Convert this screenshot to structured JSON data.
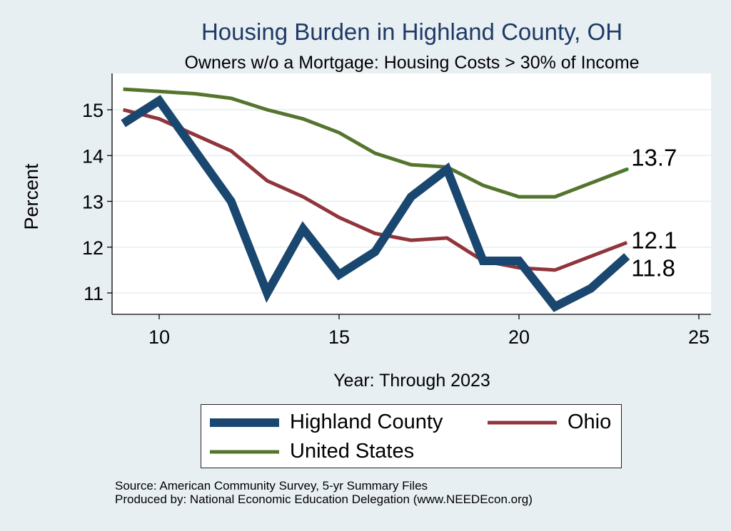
{
  "chart_data": {
    "type": "line",
    "title": "Housing Burden in Highland County, OH",
    "subtitle": "Owners w/o a Mortgage: Housing Costs > 30% of Income",
    "xlabel": "Year: Through 2023",
    "ylabel": "Percent",
    "xlim": [
      9,
      25
    ],
    "ylim": [
      10.55,
      15.6
    ],
    "x_ticks": [
      10,
      15,
      20,
      25
    ],
    "y_ticks": [
      11,
      12,
      13,
      14,
      15
    ],
    "grid": true,
    "legend_position": "bottom",
    "series": [
      {
        "name": "Highland County",
        "color": "#1a476f",
        "x": [
          9,
          10,
          11,
          12,
          13,
          14,
          15,
          16,
          17,
          18,
          19,
          20,
          21,
          22,
          23
        ],
        "values": [
          14.7,
          15.2,
          14.1,
          13.0,
          11.0,
          12.4,
          11.4,
          11.9,
          13.1,
          13.7,
          11.7,
          11.7,
          10.7,
          11.1,
          11.8
        ],
        "end_label": "11.8"
      },
      {
        "name": "Ohio",
        "color": "#90353b",
        "x": [
          9,
          10,
          11,
          12,
          13,
          14,
          15,
          16,
          17,
          18,
          19,
          20,
          21,
          22,
          23
        ],
        "values": [
          15.0,
          14.8,
          14.45,
          14.1,
          13.45,
          13.1,
          12.65,
          12.3,
          12.15,
          12.2,
          11.7,
          11.55,
          11.5,
          11.8,
          12.1
        ],
        "end_label": "12.1"
      },
      {
        "name": "United States",
        "color": "#55752f",
        "x": [
          9,
          10,
          11,
          12,
          13,
          14,
          15,
          16,
          17,
          18,
          19,
          20,
          21,
          22,
          23
        ],
        "values": [
          15.45,
          15.4,
          15.35,
          15.25,
          15.0,
          14.8,
          14.5,
          14.05,
          13.8,
          13.75,
          13.35,
          13.1,
          13.1,
          13.4,
          13.7
        ],
        "end_label": "13.7"
      }
    ]
  },
  "legend": {
    "highland": "Highland County",
    "ohio": "Ohio",
    "us": "United States"
  },
  "source": {
    "line1": "Source: American Community Survey, 5-yr Summary Files",
    "line2": "Produced by: National Economic Education Delegation (www.NEEDEcon.org)"
  },
  "colors": {
    "background": "#e8eff2",
    "plot_background": "#ffffff",
    "title": "#1f3a66"
  }
}
